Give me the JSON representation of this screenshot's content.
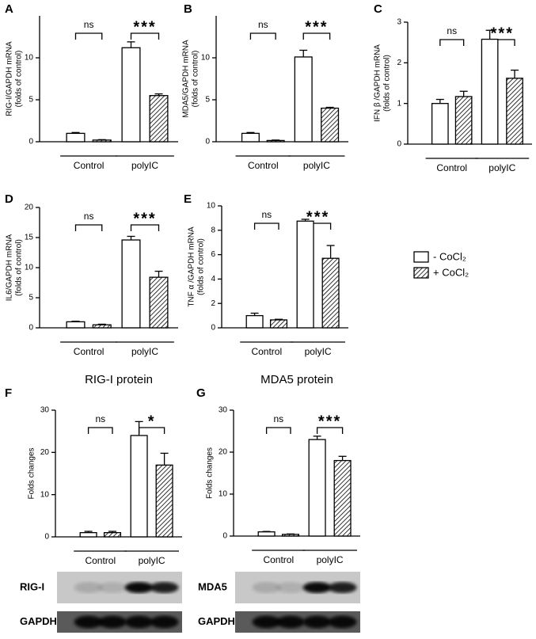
{
  "chart_data": [
    {
      "type": "bar",
      "panel": "A",
      "ylabel": [
        "RIG-I/GAPDH mRNA",
        "(folds of control)"
      ],
      "categories": [
        "Control",
        "polyIC"
      ],
      "annotations": [
        "ns",
        "***"
      ],
      "series": [
        {
          "values": [
            1.0,
            11.2
          ],
          "errors": [
            0.1,
            0.7
          ]
        },
        {
          "values": [
            0.2,
            5.5
          ],
          "errors": [
            0.05,
            0.2
          ]
        }
      ],
      "ylim": [
        0,
        15
      ],
      "yticks": [
        0,
        5,
        10
      ]
    },
    {
      "type": "bar",
      "panel": "B",
      "ylabel": [
        "MDA5/GAPDH mRNA",
        "(folds of control)"
      ],
      "categories": [
        "Control",
        "polyIC"
      ],
      "annotations": [
        "ns",
        "***"
      ],
      "series": [
        {
          "values": [
            1.0,
            10.1
          ],
          "errors": [
            0.1,
            0.8
          ]
        },
        {
          "values": [
            0.15,
            4.0
          ],
          "errors": [
            0.05,
            0.1
          ]
        }
      ],
      "ylim": [
        0,
        15
      ],
      "yticks": [
        0,
        5,
        10
      ]
    },
    {
      "type": "bar",
      "panel": "C",
      "ylabel": [
        "IFN β /GAPDH mRNA",
        "(folds of control)"
      ],
      "categories": [
        "Control",
        "polyIC"
      ],
      "annotations": [
        "ns",
        "***"
      ],
      "series": [
        {
          "values": [
            1.0,
            2.58
          ],
          "errors": [
            0.1,
            0.22
          ]
        },
        {
          "values": [
            1.17,
            1.62
          ],
          "errors": [
            0.13,
            0.2
          ]
        }
      ],
      "ylim": [
        0,
        3
      ],
      "yticks": [
        0,
        1,
        2,
        3
      ]
    },
    {
      "type": "bar",
      "panel": "D",
      "ylabel": [
        "IL6/GAPDH mRNA",
        "(folds of control)"
      ],
      "categories": [
        "Control",
        "polyIC"
      ],
      "annotations": [
        "ns",
        "***"
      ],
      "series": [
        {
          "values": [
            1.0,
            14.6
          ],
          "errors": [
            0.1,
            0.6
          ]
        },
        {
          "values": [
            0.5,
            8.4
          ],
          "errors": [
            0.1,
            1.0
          ]
        }
      ],
      "ylim": [
        0,
        20
      ],
      "yticks": [
        0,
        5,
        10,
        15,
        20
      ]
    },
    {
      "type": "bar",
      "panel": "E",
      "ylabel": [
        "TNF α /GAPDH mRNA",
        "(folds of control)"
      ],
      "categories": [
        "Control",
        "polyIC"
      ],
      "annotations": [
        "ns",
        "***"
      ],
      "series": [
        {
          "values": [
            1.0,
            8.75
          ],
          "errors": [
            0.2,
            0.15
          ]
        },
        {
          "values": [
            0.65,
            5.7
          ],
          "errors": [
            0.05,
            1.05
          ]
        }
      ],
      "ylim": [
        0,
        10
      ],
      "yticks": [
        0,
        2,
        4,
        6,
        8,
        10
      ]
    },
    {
      "type": "bar",
      "panel": "F",
      "title": "RIG-I protein",
      "ylabel": [
        "Folds changes"
      ],
      "categories": [
        "Control",
        "polyIC"
      ],
      "annotations": [
        "ns",
        "*"
      ],
      "series": [
        {
          "values": [
            1.0,
            24
          ],
          "errors": [
            0.3,
            3.3
          ]
        },
        {
          "values": [
            1.0,
            17
          ],
          "errors": [
            0.3,
            2.8
          ]
        }
      ],
      "ylim": [
        0,
        30
      ],
      "yticks": [
        0,
        10,
        20,
        30
      ],
      "blots": [
        "RIG-I",
        "GAPDH"
      ]
    },
    {
      "type": "bar",
      "panel": "G",
      "title": "MDA5 protein",
      "ylabel": [
        "Folds changes"
      ],
      "categories": [
        "Control",
        "polyIC"
      ],
      "annotations": [
        "ns",
        "***"
      ],
      "series": [
        {
          "values": [
            1.0,
            23
          ],
          "errors": [
            0.1,
            0.8
          ]
        },
        {
          "values": [
            0.4,
            18
          ],
          "errors": [
            0.1,
            1.0
          ]
        }
      ],
      "ylim": [
        0,
        30
      ],
      "yticks": [
        0,
        10,
        20,
        30
      ],
      "blots": [
        "MDA5",
        "GAPDH"
      ]
    }
  ],
  "legend": {
    "entries": [
      "- CoCl₂",
      "+ CoCl₂"
    ]
  }
}
